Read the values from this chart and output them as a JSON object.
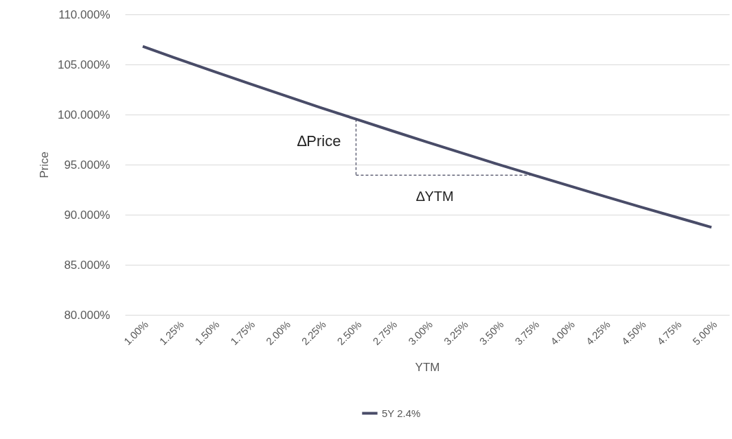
{
  "chart_data": {
    "type": "line",
    "xlabel": "YTM",
    "ylabel": "Price",
    "categories": [
      "1.00%",
      "1.25%",
      "1.50%",
      "1.75%",
      "2.00%",
      "2.25%",
      "2.50%",
      "2.75%",
      "3.00%",
      "3.25%",
      "3.50%",
      "3.75%",
      "4.00%",
      "4.25%",
      "4.50%",
      "4.75%",
      "5.00%"
    ],
    "series": [
      {
        "name": "5Y 2.4%",
        "color": "#494c68",
        "values": [
          106.8,
          105.54,
          104.3,
          103.09,
          101.89,
          100.7,
          99.54,
          98.39,
          97.25,
          96.14,
          95.03,
          93.95,
          92.88,
          91.82,
          90.78,
          89.76,
          88.74
        ]
      }
    ],
    "ylim": [
      80,
      110
    ],
    "yticks": [
      {
        "value": 80,
        "label": "80.000%"
      },
      {
        "value": 85,
        "label": "85.000%"
      },
      {
        "value": 90,
        "label": "90.000%"
      },
      {
        "value": 95,
        "label": "95.000%"
      },
      {
        "value": 100,
        "label": "100.000%"
      },
      {
        "value": 105,
        "label": "105.000%"
      },
      {
        "value": 110,
        "label": "110.000%"
      }
    ],
    "grid": "y",
    "legend": "bottom",
    "marker": "none",
    "line_style": "solid",
    "annotations": [
      {
        "text": "∆Price",
        "x": "2.50%",
        "y": 99.54
      },
      "∆YTM"
    ]
  }
}
